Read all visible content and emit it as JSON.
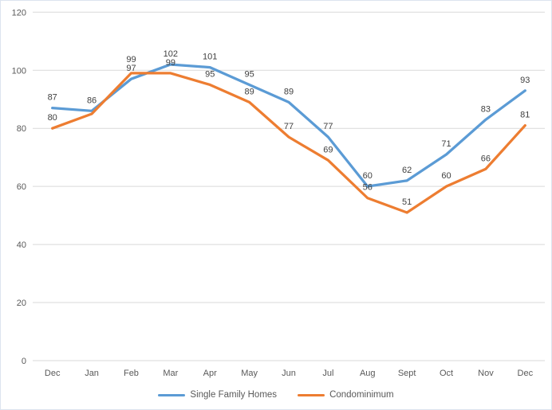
{
  "chart_data": {
    "type": "line",
    "title": "",
    "xlabel": "",
    "ylabel": "",
    "categories": [
      "Dec",
      "Jan",
      "Feb",
      "Mar",
      "Apr",
      "May",
      "Jun",
      "Jul",
      "Aug",
      "Sept",
      "Oct",
      "Nov",
      "Dec"
    ],
    "series": [
      {
        "name": "Single Family Homes",
        "color": "#5B9BD5",
        "values": [
          87,
          86,
          97,
          102,
          101,
          95,
          89,
          77,
          60,
          62,
          71,
          83,
          93
        ],
        "data_labels": [
          "87",
          "86",
          "97",
          "102",
          "101",
          "95",
          "89",
          "77",
          "60",
          "62",
          "71",
          "83",
          "93"
        ]
      },
      {
        "name": "Condominimum",
        "color": "#ED7D31",
        "values": [
          80,
          85,
          99,
          99,
          95,
          89,
          77,
          69,
          56,
          51,
          60,
          66,
          81
        ],
        "data_labels": [
          "80",
          "",
          "99",
          "99",
          "95",
          "89",
          "77",
          "69",
          "56",
          "51",
          "60",
          "66",
          "81"
        ]
      }
    ],
    "ylim": [
      0,
      120
    ],
    "yticks": [
      0,
      20,
      40,
      60,
      80,
      100,
      120
    ],
    "grid": true,
    "legend_position": "bottom",
    "colors": {
      "gridline": "#D9D9D9",
      "axis_text": "#595959",
      "data_label_text": "#404040",
      "background": "#FFFFFF",
      "frame_border": "#DCE4EF"
    }
  }
}
